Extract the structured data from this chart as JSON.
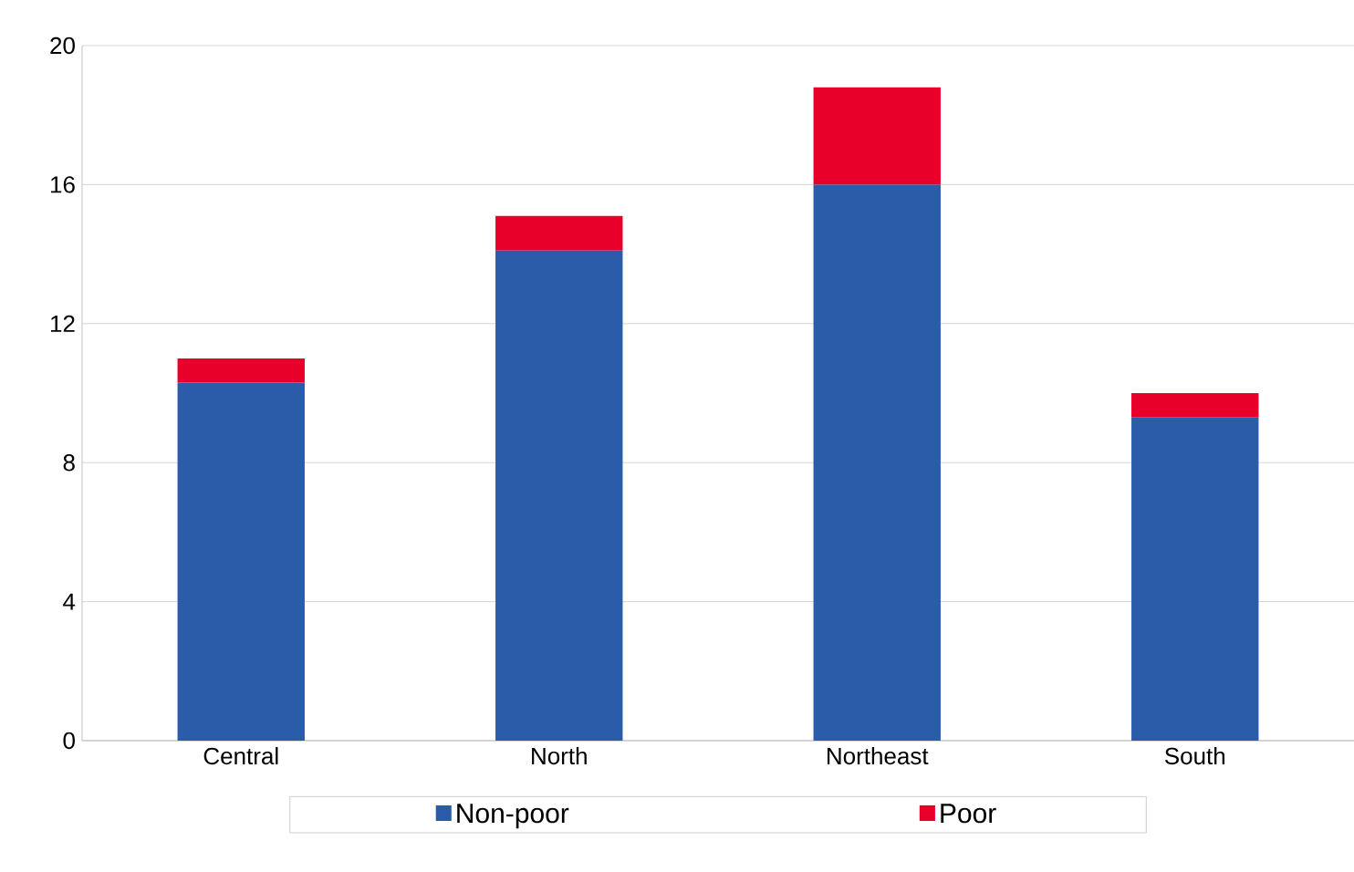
{
  "chart_data": {
    "type": "bar",
    "stacked": true,
    "categories": [
      "Central",
      "North",
      "Northeast",
      "South"
    ],
    "series": [
      {
        "name": "Non-poor",
        "color": "#2a5caa",
        "values": [
          10.3,
          14.1,
          16.0,
          9.3
        ]
      },
      {
        "name": "Poor",
        "color": "#e8002a",
        "values": [
          0.7,
          1.0,
          2.8,
          0.7
        ]
      }
    ],
    "ylim": [
      0,
      20
    ],
    "yticks": [
      0,
      4,
      8,
      12,
      16,
      20
    ],
    "grid": "y",
    "legend": "bottom"
  }
}
